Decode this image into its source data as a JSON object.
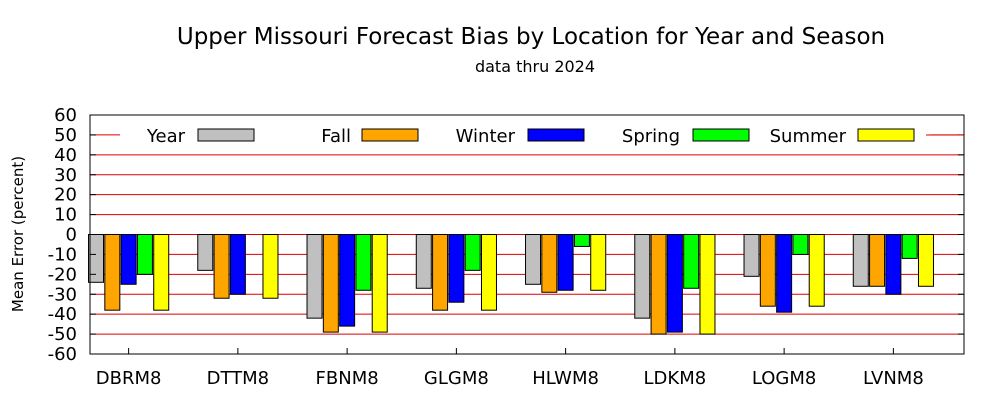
{
  "chart_data": {
    "type": "bar",
    "title": "Upper Missouri Forecast Bias by Location for Year and Season",
    "subtitle": "data thru 2024",
    "xlabel": "",
    "ylabel": "Mean Error (percent)",
    "ylim": [
      -60,
      60
    ],
    "yticks": [
      60,
      50,
      40,
      30,
      20,
      10,
      0,
      -10,
      -20,
      -30,
      -40,
      -50,
      -60
    ],
    "grid": true,
    "grid_color": "#dd0000",
    "legend_position": "top",
    "categories": [
      "DBRM8",
      "DTTM8",
      "FBNM8",
      "GLGM8",
      "HLWM8",
      "LDKM8",
      "LOGM8",
      "LVNM8"
    ],
    "series": [
      {
        "name": "Year",
        "color": "#c0c0c0",
        "values": [
          -24,
          -18,
          -42,
          -27,
          -25,
          -42,
          -21,
          -26
        ]
      },
      {
        "name": "Fall",
        "color": "#ffa500",
        "values": [
          -38,
          -32,
          -49,
          -38,
          -29,
          -50,
          -36,
          -26
        ]
      },
      {
        "name": "Winter",
        "color": "#0000ff",
        "values": [
          -25,
          -30,
          -46,
          -34,
          -28,
          -49,
          -39,
          -30
        ]
      },
      {
        "name": "Spring",
        "color": "#00ff00",
        "values": [
          -20,
          0,
          -28,
          -18,
          -6,
          -27,
          -10,
          -12
        ]
      },
      {
        "name": "Summer",
        "color": "#ffff00",
        "values": [
          -38,
          -32,
          -49,
          -38,
          -28,
          -50,
          -36,
          -26
        ]
      }
    ]
  }
}
